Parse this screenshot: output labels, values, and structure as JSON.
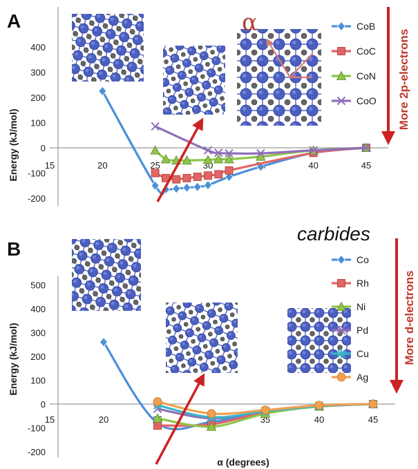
{
  "chart_data": [
    {
      "type": "line",
      "panel": "A",
      "ylabel": "Energy (kJ/mol)",
      "xlim": [
        15,
        45
      ],
      "ylim": [
        -200,
        450
      ],
      "xticks": [
        "15",
        "20",
        "25",
        "30",
        "35",
        "40",
        "45"
      ],
      "yticks": [
        "-200",
        "-100",
        "0",
        "100",
        "200",
        "300",
        "400"
      ],
      "side_label": "More 2p-electrons",
      "angle_symbol": "α",
      "series": [
        {
          "name": "CoB",
          "color": "#4a90d9",
          "marker": "diamond",
          "x": [
            20,
            25,
            26,
            27,
            28,
            29,
            30,
            32,
            35,
            40,
            45
          ],
          "y": [
            225,
            -150,
            -165,
            -162,
            -158,
            -155,
            -148,
            -115,
            -75,
            -20,
            0
          ]
        },
        {
          "name": "CoC",
          "color": "#e06666",
          "marker": "square",
          "x": [
            25,
            26,
            27,
            28,
            29,
            30,
            31,
            32,
            40,
            45
          ],
          "y": [
            -100,
            -120,
            -125,
            -120,
            -115,
            -110,
            -105,
            -90,
            -20,
            0
          ]
        },
        {
          "name": "CoN",
          "color": "#8fc44a",
          "marker": "triangle",
          "x": [
            25,
            26,
            27,
            28,
            30,
            31,
            32,
            35,
            40,
            45
          ],
          "y": [
            -10,
            -45,
            -50,
            -50,
            -48,
            -45,
            -45,
            -35,
            -10,
            0
          ]
        },
        {
          "name": "CoO",
          "color": "#8e6fb8",
          "marker": "x",
          "x": [
            25,
            30,
            31,
            32,
            35,
            40,
            45
          ],
          "y": [
            85,
            -10,
            -20,
            -22,
            -22,
            -10,
            0
          ]
        }
      ]
    },
    {
      "type": "line",
      "panel": "B",
      "ylabel": "Energy (kJ/mol)",
      "xlabel": "α (degrees)",
      "title": "carbides",
      "xlim": [
        15,
        45
      ],
      "ylim": [
        -200,
        550
      ],
      "xticks": [
        "15",
        "20",
        "25",
        "30",
        "35",
        "40",
        "45"
      ],
      "yticks": [
        "-200",
        "-100",
        "0",
        "100",
        "200",
        "300",
        "400",
        "500"
      ],
      "side_label": "More d-electrons",
      "series": [
        {
          "name": "Co",
          "color": "#4a90d9",
          "marker": "diamond",
          "x": [
            20,
            25,
            30,
            35,
            40,
            45
          ],
          "y": [
            260,
            -80,
            -75,
            -30,
            -5,
            0
          ]
        },
        {
          "name": "Rh",
          "color": "#e06666",
          "marker": "square",
          "x": [
            25,
            30,
            35,
            40,
            45
          ],
          "y": [
            -90,
            -85,
            -35,
            -10,
            0
          ]
        },
        {
          "name": "Ni",
          "color": "#8fc44a",
          "marker": "triangle",
          "x": [
            25,
            30,
            35,
            40,
            45
          ],
          "y": [
            -60,
            -95,
            -40,
            -10,
            0
          ]
        },
        {
          "name": "Pd",
          "color": "#8e6fb8",
          "marker": "x",
          "x": [
            25,
            30,
            35,
            40,
            45
          ],
          "y": [
            -20,
            -60,
            -30,
            -8,
            0
          ]
        },
        {
          "name": "Cu",
          "color": "#3bb5c8",
          "marker": "asterisk",
          "x": [
            25,
            30,
            35,
            40,
            45
          ],
          "y": [
            -5,
            -55,
            -30,
            -8,
            0
          ]
        },
        {
          "name": "Ag",
          "color": "#f0a050",
          "marker": "circle",
          "x": [
            25,
            30,
            35,
            40,
            45
          ],
          "y": [
            10,
            -40,
            -25,
            -5,
            0
          ]
        }
      ]
    }
  ]
}
